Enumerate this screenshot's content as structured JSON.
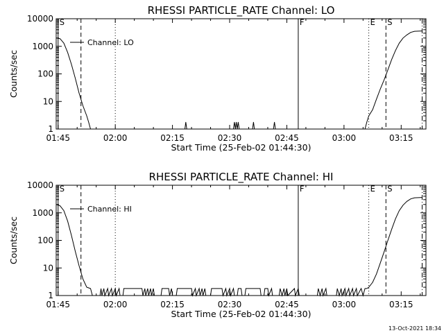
{
  "chart_data": [
    {
      "type": "line",
      "title": "RHESSI PARTICLE_RATE Channel: LO",
      "xlabel": "Start Time (25-Feb-02 01:44:30)",
      "ylabel": "Counts/sec",
      "y_scale": "log",
      "ylim": [
        1,
        10000
      ],
      "xlim": [
        "01:44:30",
        "03:21:30"
      ],
      "x_ticks": [
        "01:45",
        "02:00",
        "02:15",
        "02:30",
        "02:45",
        "03:00",
        "03:15"
      ],
      "y_ticks": [
        "1",
        "10",
        "100",
        "1000",
        "10000"
      ],
      "legend": {
        "entries": [
          "Channel: LO"
        ],
        "position": "top-left"
      },
      "event_markers": [
        {
          "label": "S",
          "time": "01:45:00",
          "style": "solid"
        },
        {
          "label": "",
          "time": "01:51:00",
          "style": "dashed"
        },
        {
          "label": "",
          "time": "02:00:00",
          "style": "dotted"
        },
        {
          "label": "F",
          "time": "02:48:00",
          "style": "solid"
        },
        {
          "label": "E",
          "time": "03:06:30",
          "style": "dotted"
        },
        {
          "label": "S",
          "time": "03:11:00",
          "style": "dashed"
        },
        {
          "label": "",
          "time": "03:20:30",
          "style": "dashdot"
        }
      ],
      "series": [
        {
          "name": "Channel: LO",
          "points": [
            [
              "01:44:30",
              2000
            ],
            [
              "01:45:30",
              1900
            ],
            [
              "01:46:30",
              1300
            ],
            [
              "01:47:30",
              600
            ],
            [
              "01:48:30",
              220
            ],
            [
              "01:49:30",
              70
            ],
            [
              "01:50:30",
              20
            ],
            [
              "01:51:30",
              7
            ],
            [
              "01:52:30",
              3
            ],
            [
              "01:53:00",
              1.8
            ],
            [
              "01:53:30",
              1
            ],
            [
              "02:18:15",
              1
            ],
            [
              "02:18:30",
              1.8
            ],
            [
              "02:18:45",
              1
            ],
            [
              "02:31:00",
              1
            ],
            [
              "02:31:15",
              1.8
            ],
            [
              "02:31:30",
              1
            ],
            [
              "02:31:45",
              1.8
            ],
            [
              "02:32:00",
              1
            ],
            [
              "02:32:15",
              1.8
            ],
            [
              "02:32:30",
              1
            ],
            [
              "02:36:00",
              1
            ],
            [
              "02:36:15",
              1.8
            ],
            [
              "02:36:30",
              1
            ],
            [
              "02:41:30",
              1
            ],
            [
              "02:41:45",
              1.8
            ],
            [
              "02:42:00",
              1
            ],
            [
              "03:05:30",
              1
            ],
            [
              "03:06:00",
              1.8
            ],
            [
              "03:06:30",
              3
            ],
            [
              "03:07:30",
              5
            ],
            [
              "03:08:30",
              12
            ],
            [
              "03:09:30",
              28
            ],
            [
              "03:10:30",
              60
            ],
            [
              "03:11:30",
              140
            ],
            [
              "03:12:30",
              330
            ],
            [
              "03:13:30",
              700
            ],
            [
              "03:14:30",
              1300
            ],
            [
              "03:15:30",
              2000
            ],
            [
              "03:16:30",
              2600
            ],
            [
              "03:17:30",
              3200
            ],
            [
              "03:18:30",
              3500
            ],
            [
              "03:20:30",
              3600
            ]
          ]
        }
      ]
    },
    {
      "type": "line",
      "title": "RHESSI PARTICLE_RATE Channel: HI",
      "xlabel": "Start Time (25-Feb-02 01:44:30)",
      "ylabel": "Counts/sec",
      "y_scale": "log",
      "ylim": [
        1,
        10000
      ],
      "xlim": [
        "01:44:30",
        "03:21:30"
      ],
      "x_ticks": [
        "01:45",
        "02:00",
        "02:15",
        "02:30",
        "02:45",
        "03:00",
        "03:15"
      ],
      "y_ticks": [
        "1",
        "10",
        "100",
        "1000",
        "10000"
      ],
      "legend": {
        "entries": [
          "Channel: HI"
        ],
        "position": "top-left"
      },
      "event_markers": [
        {
          "label": "S",
          "time": "01:45:00",
          "style": "solid"
        },
        {
          "label": "",
          "time": "01:51:00",
          "style": "dashed"
        },
        {
          "label": "",
          "time": "02:00:00",
          "style": "dotted"
        },
        {
          "label": "F",
          "time": "02:48:00",
          "style": "solid"
        },
        {
          "label": "E",
          "time": "03:06:30",
          "style": "dotted"
        },
        {
          "label": "S",
          "time": "03:11:00",
          "style": "dashed"
        },
        {
          "label": "",
          "time": "03:20:30",
          "style": "dashdot"
        }
      ],
      "series": [
        {
          "name": "Channel: HI",
          "points": [
            [
              "01:44:30",
              2000
            ],
            [
              "01:45:30",
              1800
            ],
            [
              "01:46:30",
              1200
            ],
            [
              "01:47:30",
              500
            ],
            [
              "01:48:30",
              150
            ],
            [
              "01:49:30",
              40
            ],
            [
              "01:50:30",
              12
            ],
            [
              "01:51:30",
              4
            ],
            [
              "01:52:30",
              2
            ],
            [
              "01:53:30",
              1.8
            ],
            [
              "01:54:00",
              1
            ],
            [
              "01:56:00",
              1
            ],
            [
              "01:56:15",
              1.8
            ],
            [
              "01:56:30",
              1
            ],
            [
              "01:57:00",
              1.8
            ],
            [
              "01:57:15",
              1
            ],
            [
              "01:58:00",
              1.8
            ],
            [
              "01:58:15",
              1
            ],
            [
              "01:59:00",
              1.8
            ],
            [
              "01:59:15",
              1
            ],
            [
              "02:00:00",
              1.8
            ],
            [
              "02:00:15",
              1
            ],
            [
              "02:01:00",
              1.8
            ],
            [
              "02:01:15",
              1
            ],
            [
              "02:02:00",
              1
            ],
            [
              "02:02:15",
              1.8
            ],
            [
              "02:07:00",
              1.8
            ],
            [
              "02:07:15",
              1
            ],
            [
              "02:07:45",
              1.8
            ],
            [
              "02:08:00",
              1
            ],
            [
              "02:08:30",
              1.8
            ],
            [
              "02:08:45",
              1
            ],
            [
              "02:09:15",
              1.8
            ],
            [
              "02:09:30",
              1
            ],
            [
              "02:10:00",
              1.8
            ],
            [
              "02:10:15",
              1
            ],
            [
              "02:12:00",
              1
            ],
            [
              "02:12:15",
              1.8
            ],
            [
              "02:14:00",
              1.8
            ],
            [
              "02:14:15",
              1
            ],
            [
              "02:14:45",
              1.8
            ],
            [
              "02:15:00",
              1
            ],
            [
              "02:16:00",
              1
            ],
            [
              "02:16:15",
              1.8
            ],
            [
              "02:20:00",
              1.8
            ],
            [
              "02:20:15",
              1
            ],
            [
              "02:21:00",
              1.8
            ],
            [
              "02:21:15",
              1
            ],
            [
              "02:22:00",
              1.8
            ],
            [
              "02:22:15",
              1
            ],
            [
              "02:22:45",
              1.8
            ],
            [
              "02:23:00",
              1
            ],
            [
              "02:23:30",
              1.8
            ],
            [
              "02:23:45",
              1
            ],
            [
              "02:25:00",
              1
            ],
            [
              "02:25:15",
              1.8
            ],
            [
              "02:28:00",
              1.8
            ],
            [
              "02:28:15",
              1
            ],
            [
              "02:29:00",
              1.8
            ],
            [
              "02:29:15",
              1
            ],
            [
              "02:30:00",
              1.8
            ],
            [
              "02:30:15",
              1
            ],
            [
              "02:31:00",
              1.8
            ],
            [
              "02:31:15",
              1
            ],
            [
              "02:32:00",
              1
            ],
            [
              "02:32:15",
              1.8
            ],
            [
              "02:33:00",
              1.8
            ],
            [
              "02:33:15",
              1
            ],
            [
              "02:34:00",
              1
            ],
            [
              "02:34:15",
              1.8
            ],
            [
              "02:38:00",
              1.8
            ],
            [
              "02:38:15",
              1
            ],
            [
              "02:39:00",
              1
            ],
            [
              "02:39:15",
              1.8
            ],
            [
              "02:40:00",
              1.8
            ],
            [
              "02:40:15",
              1
            ],
            [
              "02:41:00",
              1.8
            ],
            [
              "02:41:15",
              1
            ],
            [
              "02:43:00",
              1
            ],
            [
              "02:43:15",
              1.8
            ],
            [
              "02:43:45",
              1
            ],
            [
              "02:44:15",
              1.8
            ],
            [
              "02:44:30",
              1
            ],
            [
              "02:45:00",
              1.8
            ],
            [
              "02:45:15",
              1
            ],
            [
              "02:47:00",
              1.8
            ],
            [
              "02:47:15",
              1
            ],
            [
              "02:48:00",
              1.8
            ],
            [
              "02:48:15",
              1
            ],
            [
              "02:53:00",
              1
            ],
            [
              "02:53:15",
              1.8
            ],
            [
              "02:53:45",
              1
            ],
            [
              "02:54:15",
              1.8
            ],
            [
              "02:54:30",
              1
            ],
            [
              "02:55:15",
              1.8
            ],
            [
              "02:55:30",
              1
            ],
            [
              "02:58:00",
              1
            ],
            [
              "02:58:15",
              1.8
            ],
            [
              "02:58:45",
              1
            ],
            [
              "02:59:15",
              1.8
            ],
            [
              "02:59:30",
              1
            ],
            [
              "03:00:15",
              1.8
            ],
            [
              "03:00:30",
              1
            ],
            [
              "03:01:15",
              1.8
            ],
            [
              "03:01:30",
              1
            ],
            [
              "03:02:15",
              1.8
            ],
            [
              "03:02:30",
              1
            ],
            [
              "03:03:15",
              1.8
            ],
            [
              "03:03:30",
              1
            ],
            [
              "03:04:30",
              1.8
            ],
            [
              "03:05:00",
              1
            ],
            [
              "03:05:30",
              1.8
            ],
            [
              "03:06:00",
              1.8
            ],
            [
              "03:06:30",
              2
            ],
            [
              "03:07:30",
              3
            ],
            [
              "03:08:30",
              6
            ],
            [
              "03:09:30",
              15
            ],
            [
              "03:10:30",
              38
            ],
            [
              "03:11:30",
              100
            ],
            [
              "03:12:30",
              250
            ],
            [
              "03:13:30",
              600
            ],
            [
              "03:14:30",
              1200
            ],
            [
              "03:15:30",
              1900
            ],
            [
              "03:16:30",
              2600
            ],
            [
              "03:17:30",
              3200
            ],
            [
              "03:18:30",
              3500
            ],
            [
              "03:20:30",
              3600
            ]
          ]
        }
      ]
    }
  ],
  "footer": {
    "timestamp": "13-Oct-2021 18:34"
  }
}
